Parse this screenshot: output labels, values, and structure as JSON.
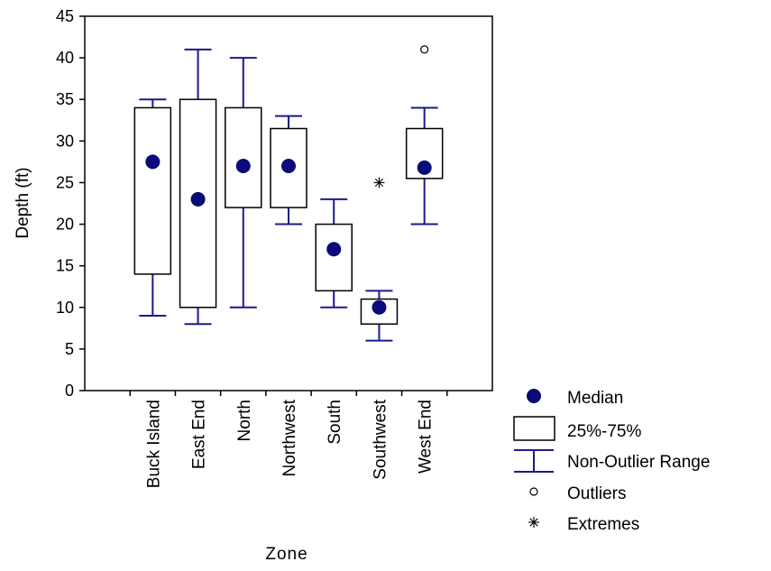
{
  "chart_data": {
    "type": "box",
    "xlabel": "Zone",
    "ylabel": "Depth (ft)",
    "ylim": [
      0,
      45
    ],
    "yticks": [
      0,
      5,
      10,
      15,
      20,
      25,
      30,
      35,
      40,
      45
    ],
    "grid": false,
    "legend_placement": "bottom-right",
    "colors": {
      "whisker": "#1a1a8c",
      "median": "#0a0a78",
      "box": "#000000"
    },
    "categories": [
      "Buck Island",
      "East End",
      "North",
      "Northwest",
      "South",
      "Southwest",
      "West End"
    ],
    "boxes": [
      {
        "zone": "Buck Island",
        "min": 9,
        "q1": 14,
        "median": 27.5,
        "q3": 34,
        "max": 35,
        "outliers": [],
        "extremes": []
      },
      {
        "zone": "East End",
        "min": 8,
        "q1": 10,
        "median": 23,
        "q3": 35,
        "max": 41,
        "outliers": [],
        "extremes": []
      },
      {
        "zone": "North",
        "min": 10,
        "q1": 22,
        "median": 27,
        "q3": 34,
        "max": 40,
        "outliers": [],
        "extremes": []
      },
      {
        "zone": "Northwest",
        "min": 20,
        "q1": 22,
        "median": 27,
        "q3": 31.5,
        "max": 33,
        "outliers": [],
        "extremes": []
      },
      {
        "zone": "South",
        "min": 10,
        "q1": 12,
        "median": 17,
        "q3": 20,
        "max": 23,
        "outliers": [],
        "extremes": []
      },
      {
        "zone": "Southwest",
        "min": 6,
        "q1": 8,
        "median": 10,
        "q3": 11,
        "max": 12,
        "outliers": [],
        "extremes": [
          25
        ]
      },
      {
        "zone": "West End",
        "min": 20,
        "q1": 25.5,
        "median": 26.8,
        "q3": 31.5,
        "max": 34,
        "outliers": [
          41
        ],
        "extremes": []
      }
    ],
    "legend": [
      {
        "key": "median",
        "label": "Median"
      },
      {
        "key": "box",
        "label": "25%-75%"
      },
      {
        "key": "whisker",
        "label": "Non-Outlier Range"
      },
      {
        "key": "outlier",
        "label": "Outliers"
      },
      {
        "key": "extreme",
        "label": "Extremes"
      }
    ]
  }
}
